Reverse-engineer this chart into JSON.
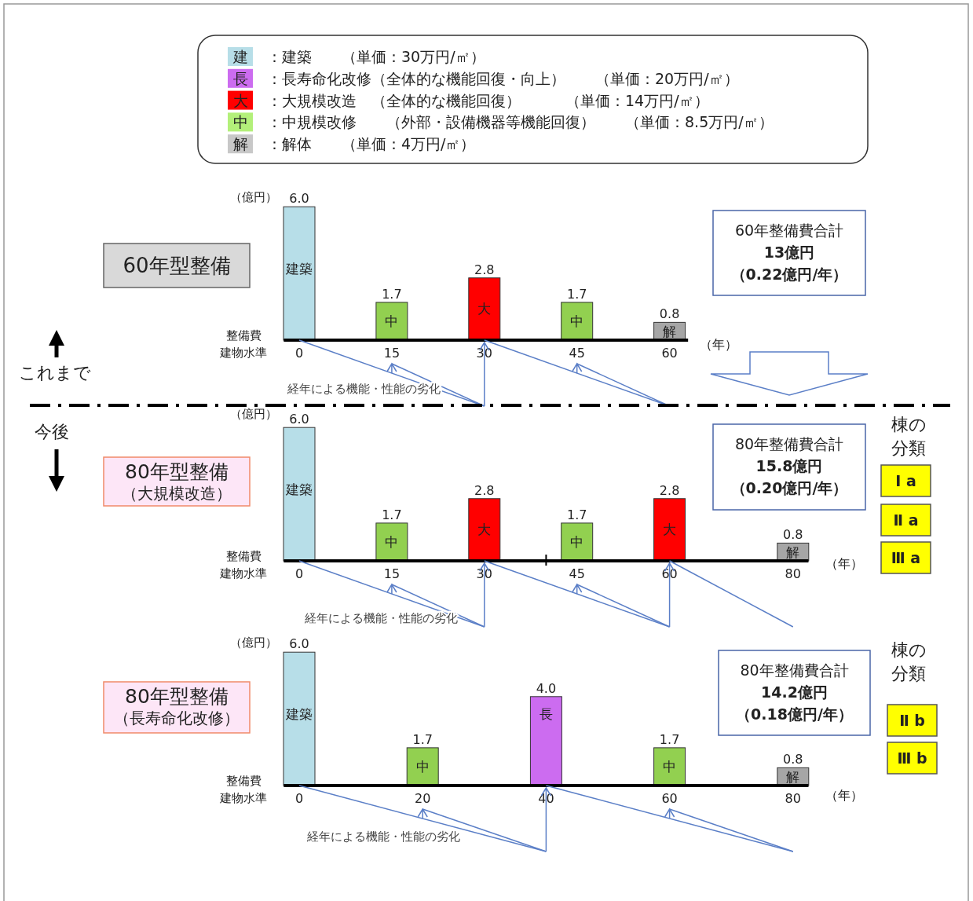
{
  "chart_data": [
    {
      "type": "other",
      "categories": [
        "建",
        "長",
        "大",
        "中",
        "解"
      ],
      "colors": [
        "#b7dee8",
        "#cc6cf0",
        "#ff0000",
        "#b3f07a",
        "#c8c8c8"
      ],
      "annotations": [
        "：建築　　（単価：30万円/㎡）",
        "：長寿命化改修（全体的な機能回復・向上）　　（単価：20万円/㎡）",
        "：大規模改造　（全体的な機能回復）　　　（単価：14万円/㎡）",
        "：中規模改修　　（外部・設備機器等機能回復）　　（単価：8.5万円/㎡）",
        "：解体　　（単価：4万円/㎡）"
      ]
    },
    {
      "type": "bar",
      "title": "60年型整備",
      "ylabel": "（億円）",
      "xlabel": "（年）",
      "x": [
        0,
        15,
        30,
        45,
        60
      ],
      "values": [
        6.0,
        1.7,
        2.8,
        1.7,
        0.8
      ],
      "value_labels": [
        "6.0",
        "1.7",
        "2.8",
        "1.7",
        "0.8"
      ],
      "colors": [
        "#b7dee8",
        "#92d050",
        "#ff0000",
        "#92d050",
        "#a6a6a6"
      ],
      "xlim": [
        -2.5,
        63
      ],
      "xticks": [
        0,
        15,
        30,
        45,
        60
      ],
      "annotations": [
        "建築",
        "中",
        "大",
        "中",
        "解",
        "整備費",
        "建物水準",
        "経年による機能・性能の劣化",
        "60年整備費合計",
        "13億円",
        "（0.22億円/年）",
        "これまで",
        "今後"
      ]
    },
    {
      "type": "bar",
      "title": "80年型整備",
      "subtitle": "（大規模改造）",
      "ylabel": "（億円）",
      "xlabel": "（年）",
      "x": [
        0,
        15,
        30,
        45,
        60,
        80
      ],
      "values": [
        6.0,
        1.7,
        2.8,
        1.7,
        2.8,
        0.8
      ],
      "value_labels": [
        "6.0",
        "1.7",
        "2.8",
        "1.7",
        "2.8",
        "0.8"
      ],
      "colors": [
        "#b7dee8",
        "#92d050",
        "#ff0000",
        "#92d050",
        "#ff0000",
        "#a6a6a6"
      ],
      "xlim": [
        -2.5,
        82.5
      ],
      "xticks": [
        0,
        15,
        30,
        {
          "value": 40,
          "label": null
        },
        45,
        60,
        80
      ],
      "annotations": [
        "建築",
        "中",
        "大",
        "中",
        "大",
        "解",
        "整備費",
        "建物水準",
        "経年による機能・性能の劣化",
        "80年整備費合計",
        "15.8億円",
        "（0.20億円/年）",
        "棟の分類",
        "Ⅰ a",
        "Ⅱ a",
        "Ⅲ a"
      ]
    },
    {
      "type": "bar",
      "title": "80年型整備",
      "subtitle": "（長寿命化改修）",
      "ylabel": "（億円）",
      "xlabel": "（年）",
      "x": [
        0,
        20,
        40,
        60,
        80
      ],
      "values": [
        6.0,
        1.7,
        4.0,
        1.7,
        0.8
      ],
      "value_labels": [
        "6.0",
        "1.7",
        "4.0",
        "1.7",
        "0.8"
      ],
      "colors": [
        "#b7dee8",
        "#92d050",
        "#cc6cf0",
        "#92d050",
        "#a6a6a6"
      ],
      "xlim": [
        -2.5,
        82.5
      ],
      "xticks": [
        0,
        20,
        40,
        60,
        80
      ],
      "annotations": [
        "建築",
        "中",
        "長",
        "中",
        "解",
        "整備費",
        "建物水準",
        "経年による機能・性能の劣化",
        "80年整備費合計",
        "14.2億円",
        "（0.18億円/年）",
        "棟の分類",
        "Ⅱ b",
        "Ⅲ b"
      ]
    }
  ]
}
